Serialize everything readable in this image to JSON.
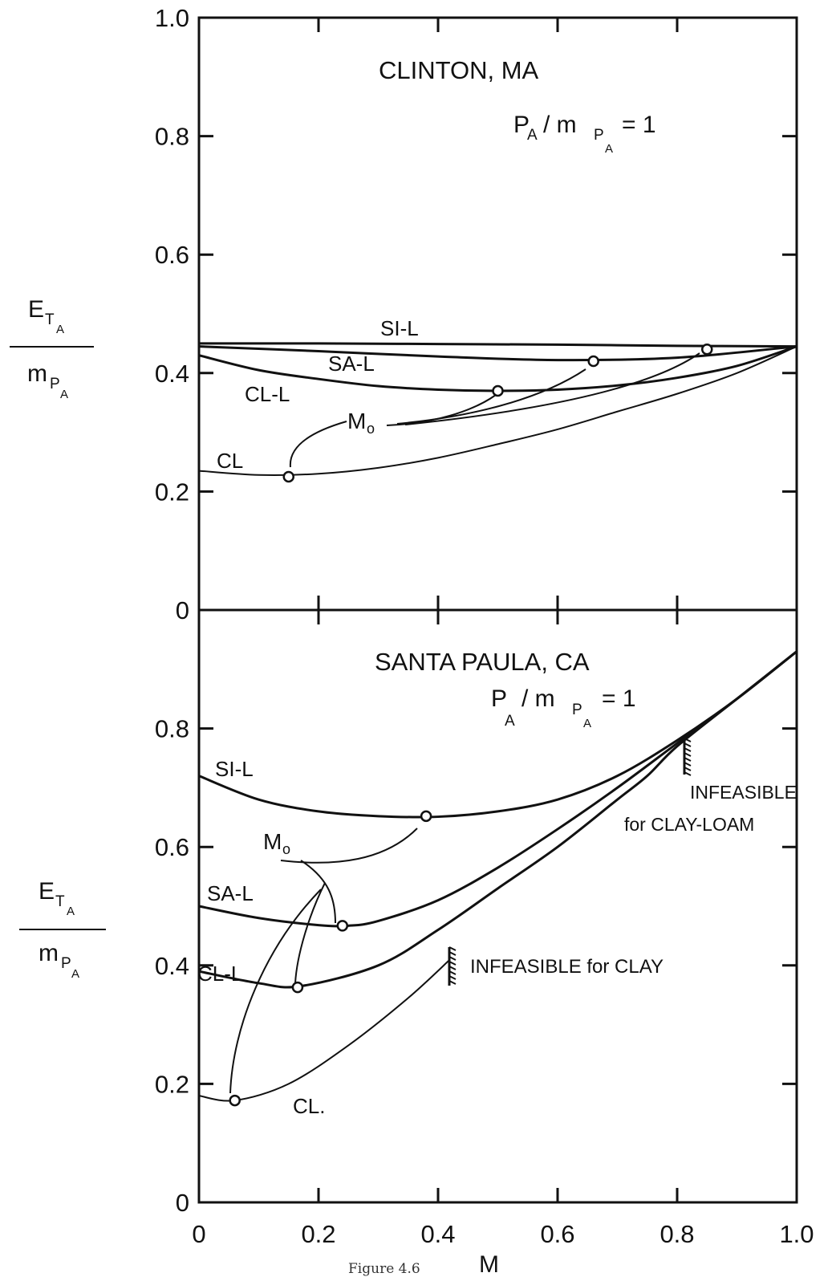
{
  "figure": {
    "caption": "Figure 4.6"
  },
  "chart_data": [
    {
      "type": "line",
      "title": "CLINTON, MA",
      "subtitle": "P_A/m_{P_A} = 1",
      "xlabel": "",
      "ylabel": "E_{T_A} / m_{P_A}",
      "xlim": [
        0,
        1.0
      ],
      "ylim": [
        0,
        1.0
      ],
      "ytick_labels": [
        "0",
        "0.2",
        "0.4",
        "0.6",
        "0.8",
        "1.0"
      ],
      "series": [
        {
          "name": "SI-L",
          "x": [
            0,
            0.2,
            0.4,
            0.6,
            0.8,
            1.0
          ],
          "y": [
            0.45,
            0.45,
            0.449,
            0.448,
            0.446,
            0.445
          ]
        },
        {
          "name": "SA-L",
          "x": [
            0,
            0.2,
            0.4,
            0.6,
            0.8,
            1.0
          ],
          "y": [
            0.445,
            0.437,
            0.428,
            0.422,
            0.426,
            0.445
          ]
        },
        {
          "name": "CL-L",
          "x": [
            0,
            0.1,
            0.2,
            0.3,
            0.4,
            0.5,
            0.6,
            0.7,
            0.8,
            0.9,
            1.0
          ],
          "y": [
            0.43,
            0.405,
            0.39,
            0.378,
            0.372,
            0.37,
            0.372,
            0.379,
            0.392,
            0.412,
            0.445
          ]
        },
        {
          "name": "CL",
          "x": [
            0,
            0.1,
            0.2,
            0.3,
            0.4,
            0.5,
            0.6,
            0.7,
            0.8,
            0.9,
            1.0
          ],
          "y": [
            0.235,
            0.228,
            0.23,
            0.24,
            0.257,
            0.28,
            0.305,
            0.335,
            0.365,
            0.4,
            0.445
          ]
        }
      ],
      "optimum_points": [
        {
          "series": "CL",
          "x": 0.15,
          "y": 0.225
        },
        {
          "series": "CL-L",
          "x": 0.5,
          "y": 0.37
        },
        {
          "series": "SA-L",
          "x": 0.66,
          "y": 0.42
        },
        {
          "series": "SI-L",
          "x": 0.85,
          "y": 0.44
        }
      ],
      "annotations": [
        "M_o"
      ]
    },
    {
      "type": "line",
      "title": "SANTA PAULA, CA",
      "subtitle": "P_A/m_{P_A} = 1",
      "xlabel": "M",
      "ylabel": "E_{T_A} / m_{P_A}",
      "xlim": [
        0,
        1.0
      ],
      "ylim": [
        0,
        1.0
      ],
      "xtick_labels": [
        "0",
        "0.2",
        "0.4",
        "0.6",
        "0.8",
        "1.0"
      ],
      "ytick_labels": [
        "0",
        "0.2",
        "0.4",
        "0.6",
        "0.8"
      ],
      "series": [
        {
          "name": "SI-L",
          "x": [
            0,
            0.1,
            0.2,
            0.3,
            0.4,
            0.5,
            0.6,
            0.7,
            0.8,
            0.9,
            1.0
          ],
          "y": [
            0.72,
            0.68,
            0.66,
            0.652,
            0.651,
            0.66,
            0.68,
            0.72,
            0.78,
            0.85,
            0.93
          ]
        },
        {
          "name": "SA-L",
          "x": [
            0,
            0.1,
            0.2,
            0.25,
            0.3,
            0.4,
            0.5,
            0.6,
            0.7,
            0.8,
            0.9,
            1.0
          ],
          "y": [
            0.5,
            0.48,
            0.468,
            0.467,
            0.475,
            0.51,
            0.565,
            0.63,
            0.7,
            0.775,
            0.85,
            0.93
          ]
        },
        {
          "name": "CL-L",
          "x": [
            0,
            0.1,
            0.17,
            0.3,
            0.4,
            0.5,
            0.6,
            0.7,
            0.75,
            0.8,
            0.9,
            1.0
          ],
          "y": [
            0.39,
            0.37,
            0.365,
            0.4,
            0.46,
            0.53,
            0.6,
            0.68,
            0.72,
            0.77,
            0.85,
            0.93
          ]
        },
        {
          "name": "CL",
          "x": [
            0,
            0.06,
            0.15,
            0.25,
            0.35,
            0.42
          ],
          "y": [
            0.18,
            0.172,
            0.2,
            0.265,
            0.345,
            0.41
          ]
        }
      ],
      "optimum_points": [
        {
          "series": "SI-L",
          "x": 0.38,
          "y": 0.652
        },
        {
          "series": "SA-L",
          "x": 0.24,
          "y": 0.467
        },
        {
          "series": "CL-L",
          "x": 0.165,
          "y": 0.363
        },
        {
          "series": "CL",
          "x": 0.06,
          "y": 0.172
        }
      ],
      "annotations": [
        "M_o",
        "INFEASIBLE for CLAY-LOAM",
        "INFEASIBLE for CLAY"
      ]
    }
  ],
  "labels": {
    "top_title": "CLINTON, MA",
    "bottom_title": "SANTA PAULA, CA",
    "ratio_P": "P",
    "ratio_A": "A",
    "ratio_slash_m": "/ m",
    "ratio_sub_P": "P",
    "ratio_sub_A": "A",
    "ratio_eq": "= 1",
    "ylab_E": "E",
    "ylab_T": "T",
    "ylab_A": "A",
    "ylab_m": "m",
    "ylab_P": "P",
    "mo_M": "M",
    "mo_o": "o",
    "x_axis_label": "M",
    "infeasible_clayloam_1": "INFEASIBLE",
    "infeasible_clayloam_2": "for CLAY-LOAM",
    "infeasible_clay": "INFEASIBLE  for  CLAY",
    "series_top": {
      "sil": "SI-L",
      "sal": "SA-L",
      "cll": "CL-L",
      "cl": "CL"
    },
    "series_bottom": {
      "sil": "SI-L",
      "sal": "SA-L",
      "cll": "CL-L",
      "cl": "CL."
    }
  }
}
